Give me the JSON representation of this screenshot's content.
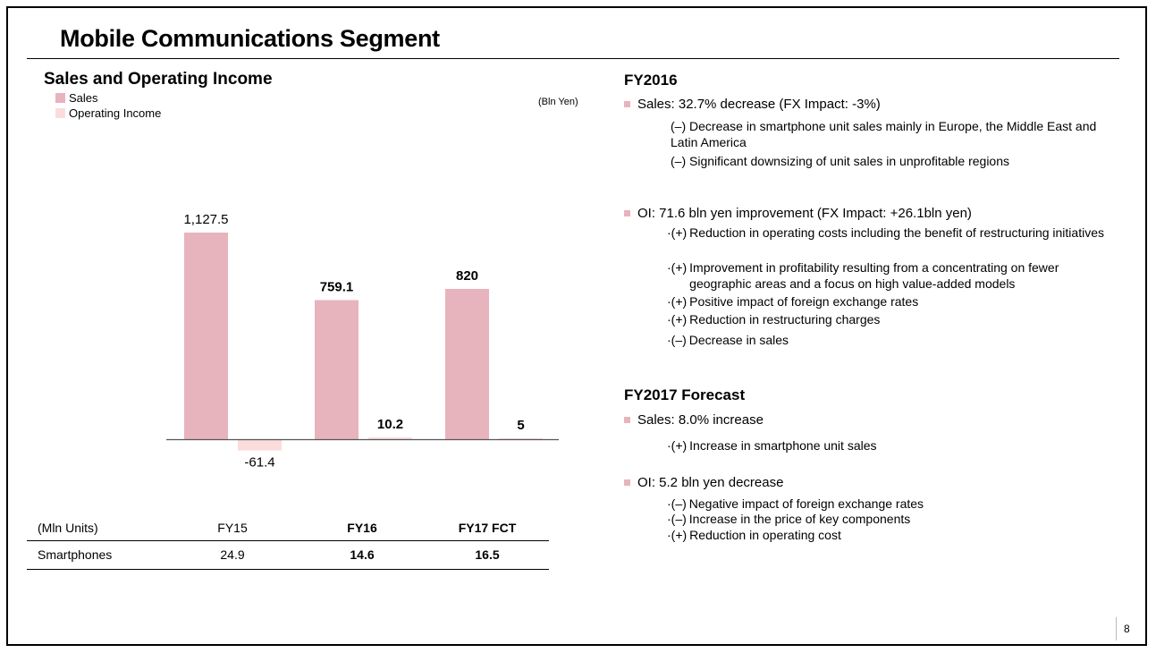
{
  "header": {
    "title": "Mobile Communications Segment"
  },
  "chart_data": {
    "type": "bar",
    "title": "Sales and Operating Income",
    "unit": "(Bln Yen)",
    "categories": [
      "FY15",
      "FY16",
      "FY17 FCT"
    ],
    "series": [
      {
        "name": "Sales",
        "values": [
          1127.5,
          759.1,
          820
        ],
        "labels": [
          "1,127.5",
          "759.1",
          "820"
        ],
        "color": "#e7b3bd"
      },
      {
        "name": "Operating Income",
        "values": [
          -61.4,
          10.2,
          5
        ],
        "labels": [
          "-61.4",
          "10.2",
          "5"
        ],
        "color": "#fadcdc"
      }
    ],
    "legend": "top-left",
    "grid": false
  },
  "units_table": {
    "unit_label": "(Mln Units)",
    "columns": [
      "FY15",
      "FY16",
      "FY17 FCT"
    ],
    "row_label": "Smartphones",
    "values": [
      "24.9",
      "14.6",
      "16.5"
    ]
  },
  "fy2016": {
    "title": "FY2016",
    "sales_bullet": "Sales: 32.7% decrease (FX Impact:  -3%)",
    "sales_items": [
      {
        "mark": "(–)",
        "text": "Decrease in smartphone unit sales mainly in Europe, the Middle East and Latin America"
      },
      {
        "mark": "(–)",
        "text": "Significant downsizing of unit sales in unprofitable regions"
      }
    ],
    "oi_bullet": "OI: 71.6 bln yen improvement (FX Impact:  +26.1bln yen)",
    "oi_items": [
      {
        "mark": "·(+)",
        "text": "Reduction in operating costs including the benefit of restructuring initiatives"
      },
      {
        "mark": "·(+)",
        "text": "Improvement in profitability resulting from a concentrating on fewer geographic areas and a focus on high value-added models"
      },
      {
        "mark": "·(+)",
        "text": "Positive impact of foreign exchange rates"
      },
      {
        "mark": "·(+)",
        "text": "Reduction in restructuring charges"
      },
      {
        "mark": "·(–)",
        "text": "Decrease in sales"
      }
    ]
  },
  "fy2017": {
    "title": "FY2017 Forecast",
    "sales_bullet": "Sales: 8.0% increase",
    "sales_items": [
      {
        "mark": "·(+)",
        "text": "Increase in smartphone unit sales"
      }
    ],
    "oi_bullet": "OI: 5.2 bln yen decrease",
    "oi_items": [
      {
        "mark": "·(–)",
        "text": "Negative impact of foreign exchange rates"
      },
      {
        "mark": "·(–)",
        "text": "Increase in the price of key components"
      },
      {
        "mark": "·(+)",
        "text": "Reduction in operating cost"
      }
    ]
  },
  "footer": {
    "page_number": "8"
  }
}
